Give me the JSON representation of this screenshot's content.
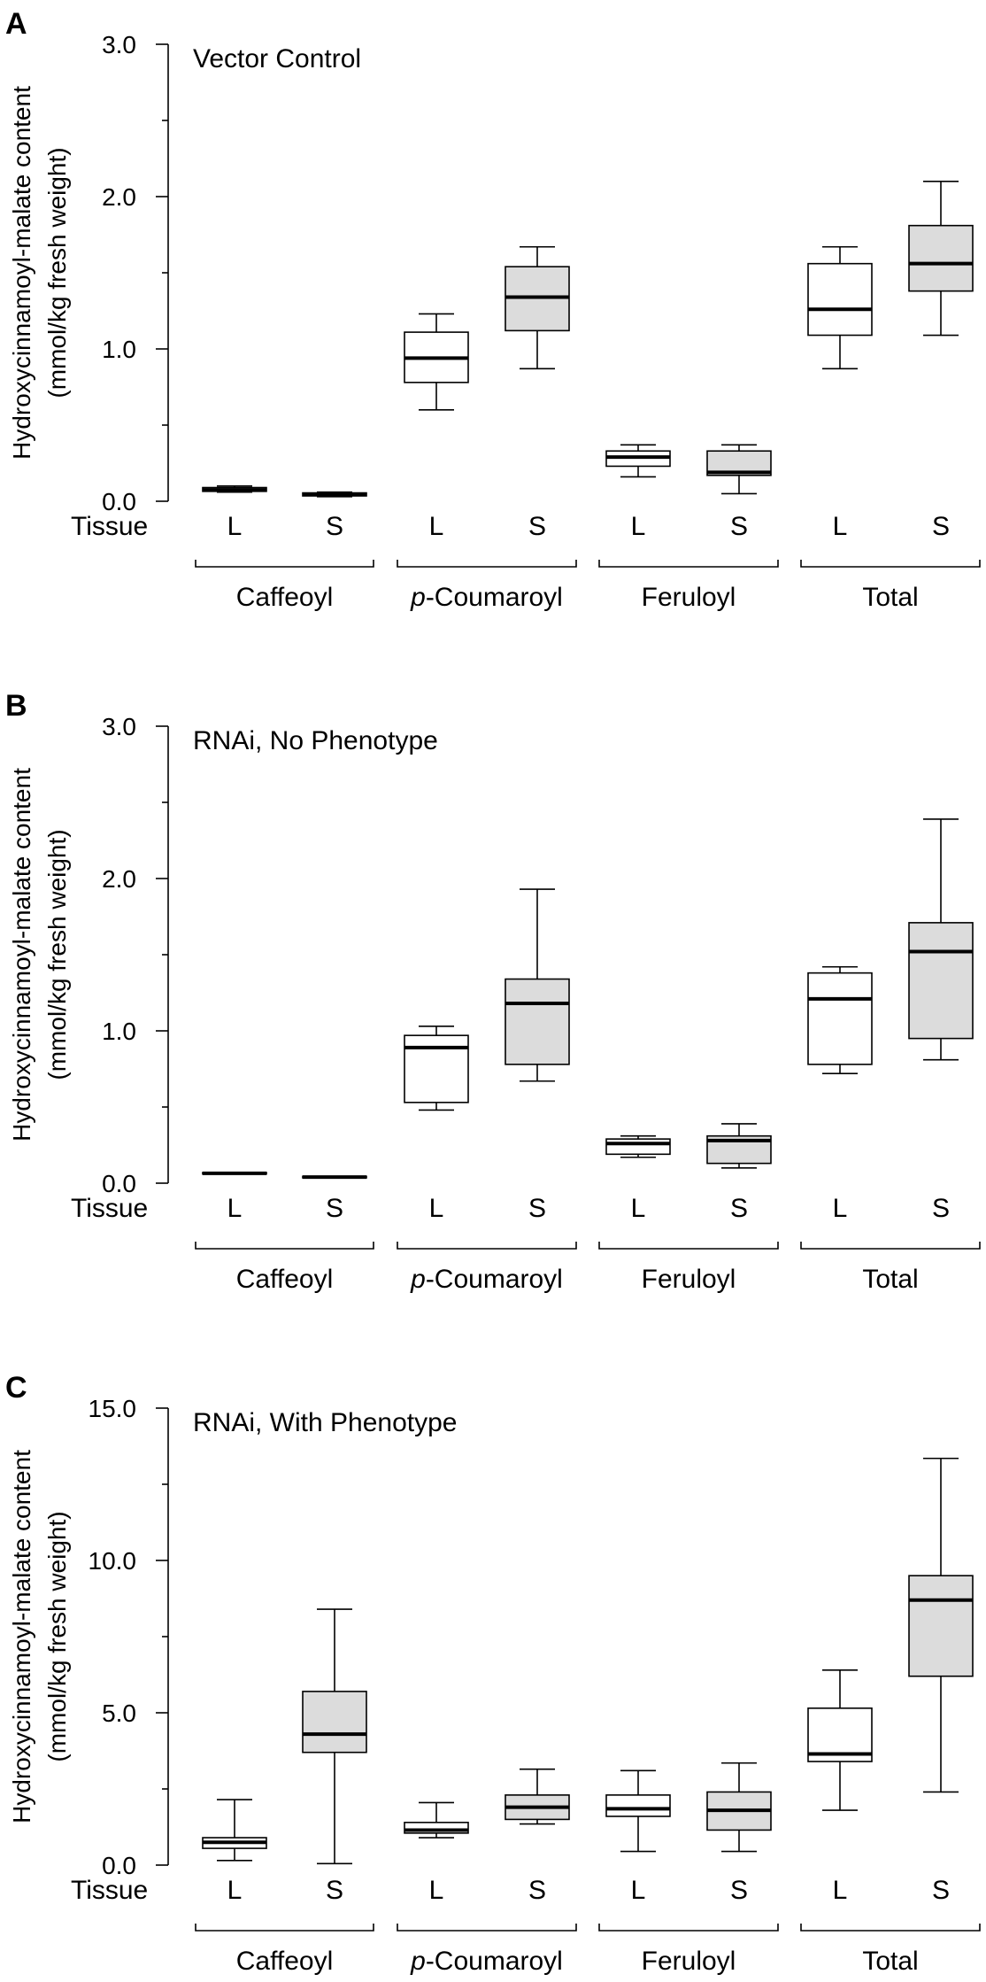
{
  "chart_data": [
    {
      "type": "box",
      "panel": "A",
      "title": "Vector Control",
      "ylabel_line1": "Hydroxycinnamoyl-malate content",
      "ylabel_line2": "(mmol/kg fresh weight)",
      "ylim": [
        0,
        3.0
      ],
      "yticks": [
        0.0,
        1.0,
        2.0,
        3.0
      ],
      "ytick_labels": [
        "0.0",
        "1.0",
        "2.0",
        "3.0"
      ],
      "yminor": [
        0.5,
        1.5,
        2.5
      ],
      "tissue_label": "Tissue",
      "groups": [
        "Caffeoyl",
        "p-Coumaroyl",
        "Feruloyl",
        "Total"
      ],
      "group_prefix": [
        "",
        "p",
        "",
        ""
      ],
      "group_rest": [
        "Caffeoyl",
        "-Coumaroyl",
        "Feruloyl",
        "Total"
      ],
      "tissues": [
        "L",
        "S"
      ],
      "boxes": [
        {
          "group": "Caffeoyl",
          "tissue": "L",
          "min": 0.06,
          "q1": 0.065,
          "median": 0.075,
          "q3": 0.09,
          "max": 0.1
        },
        {
          "group": "Caffeoyl",
          "tissue": "S",
          "min": 0.03,
          "q1": 0.035,
          "median": 0.045,
          "q3": 0.055,
          "max": 0.06
        },
        {
          "group": "p-Coumaroyl",
          "tissue": "L",
          "min": 0.6,
          "q1": 0.78,
          "median": 0.94,
          "q3": 1.11,
          "max": 1.23
        },
        {
          "group": "p-Coumaroyl",
          "tissue": "S",
          "min": 0.87,
          "q1": 1.12,
          "median": 1.34,
          "q3": 1.54,
          "max": 1.67
        },
        {
          "group": "Feruloyl",
          "tissue": "L",
          "min": 0.16,
          "q1": 0.23,
          "median": 0.29,
          "q3": 0.33,
          "max": 0.37
        },
        {
          "group": "Feruloyl",
          "tissue": "S",
          "min": 0.05,
          "q1": 0.17,
          "median": 0.19,
          "q3": 0.33,
          "max": 0.37
        },
        {
          "group": "Total",
          "tissue": "L",
          "min": 0.87,
          "q1": 1.09,
          "median": 1.26,
          "q3": 1.56,
          "max": 1.67
        },
        {
          "group": "Total",
          "tissue": "S",
          "min": 1.09,
          "q1": 1.38,
          "median": 1.56,
          "q3": 1.81,
          "max": 2.1
        }
      ]
    },
    {
      "type": "box",
      "panel": "B",
      "title": "RNAi, No Phenotype",
      "ylabel_line1": "Hydroxycinnamoyl-malate content",
      "ylabel_line2": "(mmol/kg fresh weight)",
      "ylim": [
        0,
        3.0
      ],
      "yticks": [
        0.0,
        1.0,
        2.0,
        3.0
      ],
      "ytick_labels": [
        "0.0",
        "1.0",
        "2.0",
        "3.0"
      ],
      "yminor": [
        0.5,
        1.5,
        2.5
      ],
      "tissue_label": "Tissue",
      "groups": [
        "Caffeoyl",
        "p-Coumaroyl",
        "Feruloyl",
        "Total"
      ],
      "group_prefix": [
        "",
        "p",
        "",
        ""
      ],
      "group_rest": [
        "Caffeoyl",
        "-Coumaroyl",
        "Feruloyl",
        "Total"
      ],
      "tissues": [
        "L",
        "S"
      ],
      "boxes": [
        {
          "group": "Caffeoyl",
          "tissue": "L",
          "min": 0.06,
          "q1": 0.06,
          "median": 0.065,
          "q3": 0.07,
          "max": 0.07
        },
        {
          "group": "Caffeoyl",
          "tissue": "S",
          "min": 0.035,
          "q1": 0.035,
          "median": 0.04,
          "q3": 0.045,
          "max": 0.045
        },
        {
          "group": "p-Coumaroyl",
          "tissue": "L",
          "min": 0.48,
          "q1": 0.53,
          "median": 0.89,
          "q3": 0.97,
          "max": 1.03
        },
        {
          "group": "p-Coumaroyl",
          "tissue": "S",
          "min": 0.67,
          "q1": 0.78,
          "median": 1.18,
          "q3": 1.34,
          "max": 1.93
        },
        {
          "group": "Feruloyl",
          "tissue": "L",
          "min": 0.17,
          "q1": 0.19,
          "median": 0.26,
          "q3": 0.29,
          "max": 0.31
        },
        {
          "group": "Feruloyl",
          "tissue": "S",
          "min": 0.1,
          "q1": 0.13,
          "median": 0.28,
          "q3": 0.31,
          "max": 0.39
        },
        {
          "group": "Total",
          "tissue": "L",
          "min": 0.72,
          "q1": 0.78,
          "median": 1.21,
          "q3": 1.38,
          "max": 1.42
        },
        {
          "group": "Total",
          "tissue": "S",
          "min": 0.81,
          "q1": 0.95,
          "median": 1.52,
          "q3": 1.71,
          "max": 2.39
        }
      ]
    },
    {
      "type": "box",
      "panel": "C",
      "title": "RNAi, With Phenotype",
      "ylabel_line1": "Hydroxycinnamoyl-malate content",
      "ylabel_line2": "(mmol/kg fresh weight)",
      "ylim": [
        0,
        15.0
      ],
      "yticks": [
        0.0,
        5.0,
        10.0,
        15.0
      ],
      "ytick_labels": [
        "0.0",
        "5.0",
        "10.0",
        "15.0"
      ],
      "yminor": [
        2.5,
        7.5,
        12.5
      ],
      "tissue_label": "Tissue",
      "groups": [
        "Caffeoyl",
        "p-Coumaroyl",
        "Feruloyl",
        "Total"
      ],
      "group_prefix": [
        "",
        "p",
        "",
        ""
      ],
      "group_rest": [
        "Caffeoyl",
        "-Coumaroyl",
        "Feruloyl",
        "Total"
      ],
      "tissues": [
        "L",
        "S"
      ],
      "boxes": [
        {
          "group": "Caffeoyl",
          "tissue": "L",
          "min": 0.15,
          "q1": 0.55,
          "median": 0.75,
          "q3": 0.9,
          "max": 2.15
        },
        {
          "group": "Caffeoyl",
          "tissue": "S",
          "min": 0.05,
          "q1": 3.7,
          "median": 4.3,
          "q3": 5.7,
          "max": 8.4
        },
        {
          "group": "p-Coumaroyl",
          "tissue": "L",
          "min": 0.9,
          "q1": 1.05,
          "median": 1.15,
          "q3": 1.4,
          "max": 2.05
        },
        {
          "group": "p-Coumaroyl",
          "tissue": "S",
          "min": 1.35,
          "q1": 1.5,
          "median": 1.9,
          "q3": 2.3,
          "max": 3.15
        },
        {
          "group": "Feruloyl",
          "tissue": "L",
          "min": 0.45,
          "q1": 1.6,
          "median": 1.85,
          "q3": 2.3,
          "max": 3.1
        },
        {
          "group": "Feruloyl",
          "tissue": "S",
          "min": 0.45,
          "q1": 1.15,
          "median": 1.8,
          "q3": 2.4,
          "max": 3.35
        },
        {
          "group": "Total",
          "tissue": "L",
          "min": 1.8,
          "q1": 3.4,
          "median": 3.65,
          "q3": 5.15,
          "max": 6.4
        },
        {
          "group": "Total",
          "tissue": "S",
          "min": 2.4,
          "q1": 6.2,
          "median": 8.7,
          "q3": 9.5,
          "max": 13.35
        }
      ]
    }
  ]
}
